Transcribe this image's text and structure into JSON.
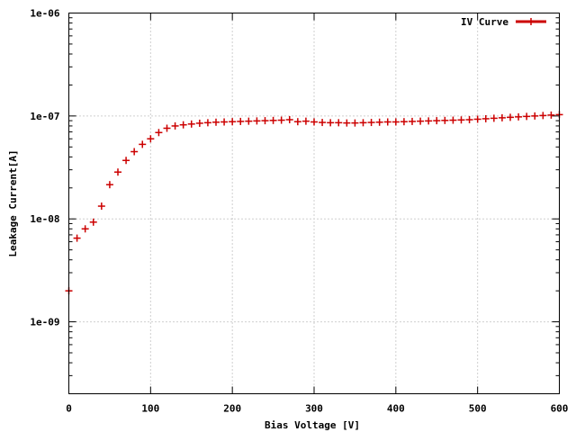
{
  "chart_data": {
    "type": "scatter",
    "title": "",
    "xlabel": "Bias Voltage [V]",
    "ylabel": "Leakage Current[A]",
    "xlim": [
      0,
      600
    ],
    "ylim": [
      2e-10,
      1e-06
    ],
    "y_scale": "log",
    "grid": true,
    "legend_position": "top-right",
    "x_ticks": [
      0,
      100,
      200,
      300,
      400,
      500,
      600
    ],
    "x_tick_labels": [
      "0",
      "100",
      "200",
      "300",
      "400",
      "500",
      "600"
    ],
    "y_ticks": [
      1e-09,
      1e-08,
      1e-07,
      1e-06
    ],
    "y_tick_labels": [
      "1e-09",
      "1e-08",
      "1e-07",
      "1e-06"
    ],
    "series": [
      {
        "name": "IV Curve",
        "color": "#cc0000",
        "marker": "plus",
        "x": [
          0,
          10,
          20,
          30,
          40,
          50,
          60,
          70,
          80,
          90,
          100,
          110,
          120,
          130,
          140,
          150,
          160,
          170,
          180,
          190,
          200,
          210,
          220,
          230,
          240,
          250,
          260,
          270,
          280,
          290,
          300,
          310,
          320,
          330,
          340,
          350,
          360,
          370,
          380,
          390,
          400,
          410,
          420,
          430,
          440,
          450,
          460,
          470,
          480,
          490,
          500,
          510,
          520,
          530,
          540,
          550,
          560,
          570,
          580,
          590,
          600
        ],
        "y": [
          2e-09,
          6.5e-09,
          8e-09,
          9.3e-09,
          1.33e-08,
          2.15e-08,
          2.85e-08,
          3.7e-08,
          4.5e-08,
          5.3e-08,
          6e-08,
          6.9e-08,
          7.6e-08,
          8e-08,
          8.2e-08,
          8.35e-08,
          8.5e-08,
          8.6e-08,
          8.7e-08,
          8.75e-08,
          8.8e-08,
          8.85e-08,
          8.9e-08,
          8.95e-08,
          9e-08,
          9.05e-08,
          9.1e-08,
          9.2e-08,
          8.8e-08,
          8.9e-08,
          8.75e-08,
          8.65e-08,
          8.6e-08,
          8.6e-08,
          8.55e-08,
          8.55e-08,
          8.6e-08,
          8.65e-08,
          8.7e-08,
          8.75e-08,
          8.75e-08,
          8.8e-08,
          8.85e-08,
          8.9e-08,
          8.95e-08,
          9e-08,
          9.05e-08,
          9.1e-08,
          9.15e-08,
          9.2e-08,
          9.3e-08,
          9.4e-08,
          9.5e-08,
          9.6e-08,
          9.7e-08,
          9.8e-08,
          9.9e-08,
          1e-07,
          1.01e-07,
          1.02e-07,
          1.03e-07
        ]
      }
    ]
  }
}
